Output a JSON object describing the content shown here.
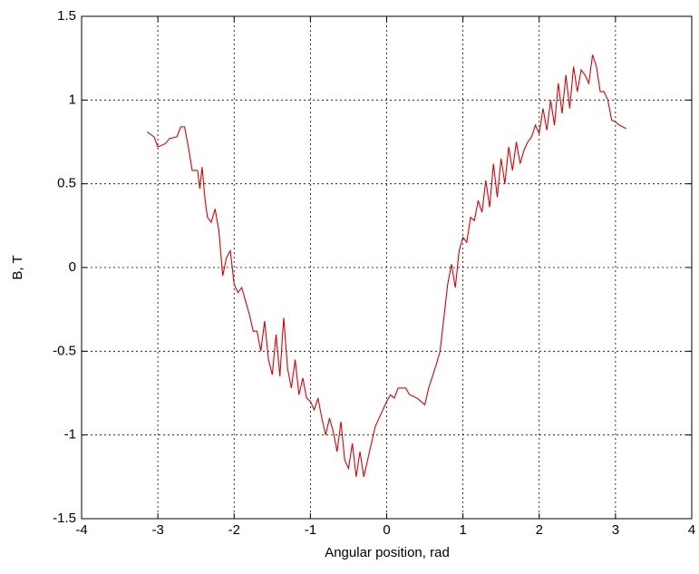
{
  "chart_data": {
    "type": "line",
    "xlabel": "Angular position, rad",
    "ylabel": "B, T",
    "x": [
      -3.14,
      -3.05,
      -3.0,
      -2.9,
      -2.85,
      -2.75,
      -2.7,
      -2.65,
      -2.6,
      -2.55,
      -2.48,
      -2.45,
      -2.42,
      -2.38,
      -2.35,
      -2.3,
      -2.25,
      -2.2,
      -2.15,
      -2.1,
      -2.05,
      -2.0,
      -1.95,
      -1.9,
      -1.85,
      -1.8,
      -1.75,
      -1.7,
      -1.65,
      -1.6,
      -1.55,
      -1.5,
      -1.45,
      -1.4,
      -1.35,
      -1.3,
      -1.25,
      -1.2,
      -1.15,
      -1.1,
      -1.05,
      -1.0,
      -0.95,
      -0.9,
      -0.85,
      -0.8,
      -0.75,
      -0.7,
      -0.65,
      -0.6,
      -0.55,
      -0.5,
      -0.45,
      -0.4,
      -0.35,
      -0.3,
      -0.25,
      -0.2,
      -0.15,
      -0.1,
      -0.05,
      0.0,
      0.05,
      0.1,
      0.15,
      0.25,
      0.3,
      0.4,
      0.5,
      0.55,
      0.6,
      0.65,
      0.7,
      0.75,
      0.8,
      0.85,
      0.9,
      0.95,
      1.0,
      1.05,
      1.1,
      1.15,
      1.2,
      1.25,
      1.3,
      1.35,
      1.4,
      1.45,
      1.5,
      1.55,
      1.6,
      1.65,
      1.7,
      1.75,
      1.8,
      1.85,
      1.9,
      1.95,
      2.0,
      2.05,
      2.1,
      2.15,
      2.2,
      2.25,
      2.3,
      2.35,
      2.4,
      2.45,
      2.5,
      2.55,
      2.6,
      2.65,
      2.7,
      2.75,
      2.8,
      2.85,
      2.9,
      2.95,
      3.0,
      3.05,
      3.14
    ],
    "values": [
      0.81,
      0.78,
      0.72,
      0.74,
      0.77,
      0.78,
      0.84,
      0.84,
      0.72,
      0.58,
      0.58,
      0.47,
      0.6,
      0.4,
      0.3,
      0.27,
      0.35,
      0.22,
      -0.05,
      0.06,
      0.1,
      -0.1,
      -0.15,
      -0.12,
      -0.2,
      -0.28,
      -0.38,
      -0.38,
      -0.5,
      -0.32,
      -0.55,
      -0.64,
      -0.4,
      -0.65,
      -0.3,
      -0.6,
      -0.72,
      -0.55,
      -0.76,
      -0.66,
      -0.78,
      -0.8,
      -0.85,
      -0.78,
      -0.9,
      -1.0,
      -0.9,
      -0.98,
      -1.1,
      -0.92,
      -1.15,
      -1.2,
      -1.05,
      -1.25,
      -1.1,
      -1.25,
      -1.15,
      -1.05,
      -0.95,
      -0.9,
      -0.85,
      -0.8,
      -0.76,
      -0.78,
      -0.72,
      -0.72,
      -0.76,
      -0.78,
      -0.82,
      -0.72,
      -0.65,
      -0.58,
      -0.5,
      -0.3,
      -0.1,
      0.02,
      -0.12,
      0.1,
      0.18,
      0.15,
      0.3,
      0.28,
      0.4,
      0.33,
      0.52,
      0.36,
      0.62,
      0.42,
      0.65,
      0.5,
      0.72,
      0.58,
      0.75,
      0.62,
      0.7,
      0.75,
      0.78,
      0.85,
      0.8,
      0.95,
      0.82,
      1.0,
      0.85,
      1.1,
      0.92,
      1.15,
      0.95,
      1.2,
      1.05,
      1.18,
      1.15,
      1.1,
      1.27,
      1.2,
      1.05,
      1.05,
      1.0,
      0.88,
      0.87,
      0.85,
      0.83
    ],
    "color": "#e00000",
    "xlim": [
      -4,
      4
    ],
    "xticks": [
      -4,
      -3,
      -2,
      -1,
      0,
      1,
      2,
      3,
      4
    ],
    "ylim": [
      -1.5,
      1.5
    ],
    "yticks": [
      -1.5,
      -1,
      -0.5,
      0,
      0.5,
      1,
      1.5
    ],
    "grid": true
  }
}
